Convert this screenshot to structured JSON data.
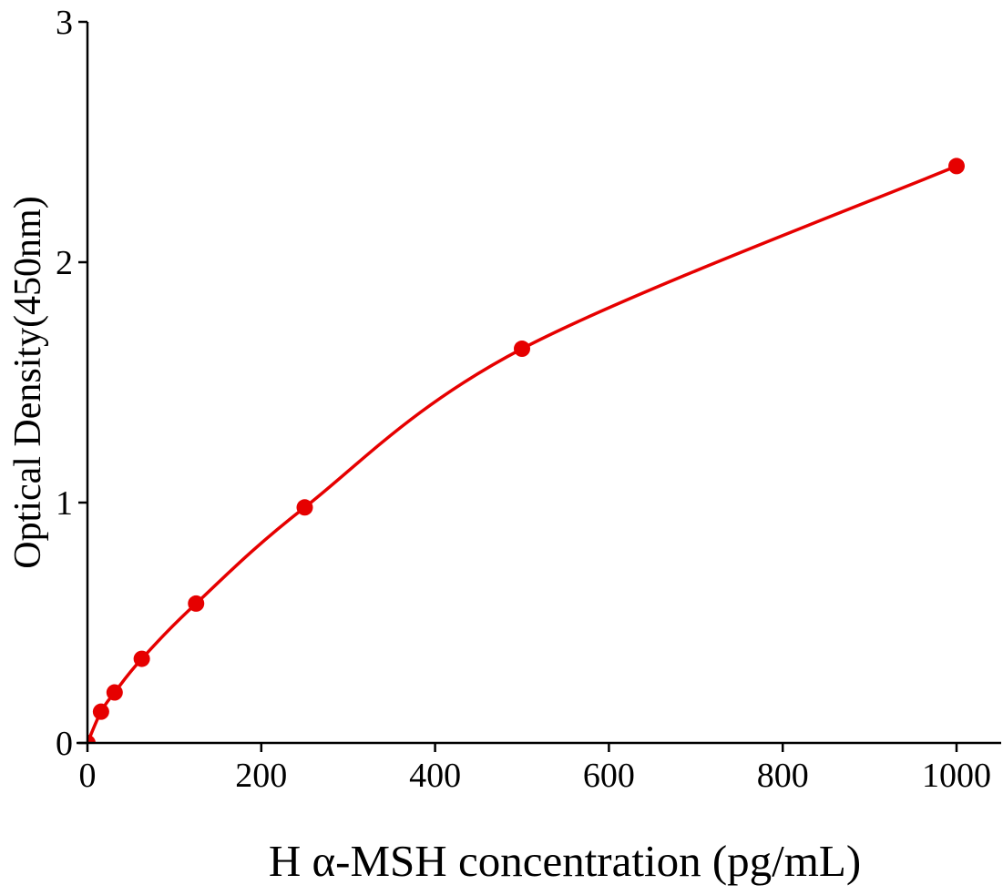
{
  "chart_data": {
    "type": "scatter",
    "title": "",
    "xlabel": "H α-MSH concentration (pg/mL)",
    "ylabel": "Optical Density(450nm)",
    "xlim": [
      0,
      1000
    ],
    "ylim": [
      0,
      3
    ],
    "xticks": [
      "0",
      "200",
      "400",
      "600",
      "800",
      "1000"
    ],
    "yticks": [
      "0",
      "1",
      "2",
      "3"
    ],
    "grid": false,
    "color": "#e60000",
    "series": [
      {
        "x": [
          0,
          15.6,
          31.25,
          62.5,
          125,
          250,
          500,
          1000
        ],
        "y": [
          0.0,
          0.13,
          0.21,
          0.35,
          0.58,
          0.98,
          1.64,
          2.4
        ],
        "fit_curve": true
      }
    ]
  }
}
